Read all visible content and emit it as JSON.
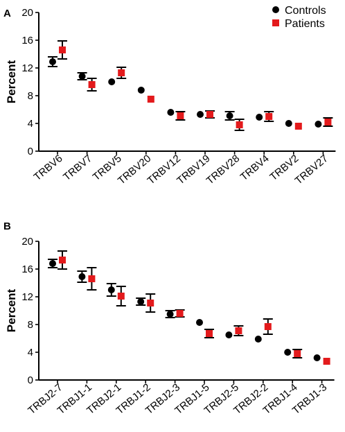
{
  "legend": {
    "items": [
      {
        "label": "Controls",
        "color": "#000000",
        "marker": "circle"
      },
      {
        "label": "Patients",
        "color": "#e31a1c",
        "marker": "square"
      }
    ]
  },
  "chart_data": [
    {
      "panel": "A",
      "type": "scatter",
      "ylabel": "Percent",
      "ylim": [
        0,
        20
      ],
      "yticks": [
        "0",
        "4",
        "8",
        "12",
        "16",
        "20"
      ],
      "categories": [
        "TRBV6",
        "TRBV7",
        "TRBV5",
        "TRBV20",
        "TRBV12",
        "TRBV19",
        "TRBV28",
        "TRBV4",
        "TRBV2",
        "TRBV27"
      ],
      "series": [
        {
          "name": "Controls",
          "values": [
            12.9,
            10.8,
            10.0,
            8.8,
            5.6,
            5.3,
            5.1,
            4.9,
            4.0,
            3.9
          ],
          "err": [
            0.7,
            0.5,
            0.0,
            0.0,
            0.0,
            0.0,
            0.6,
            0.0,
            0.0,
            0.0
          ]
        },
        {
          "name": "Patients",
          "values": [
            14.6,
            9.6,
            11.3,
            7.5,
            5.1,
            5.3,
            3.8,
            5.0,
            3.6,
            4.2
          ],
          "err": [
            1.3,
            0.9,
            0.8,
            0.0,
            0.6,
            0.5,
            0.8,
            0.7,
            0.0,
            0.6
          ]
        }
      ]
    },
    {
      "panel": "B",
      "type": "scatter",
      "ylabel": "Percent",
      "ylim": [
        0,
        20
      ],
      "yticks": [
        "0",
        "4",
        "8",
        "12",
        "16",
        "20"
      ],
      "categories": [
        "TRBJ2-7",
        "TRBJ1-1",
        "TRBJ2-1",
        "TRBJ1-2",
        "TRBJ2-3",
        "TRBJ1-5",
        "TRBJ2-5",
        "TRBJ2-2",
        "TRBJ1-4",
        "TRBJ1-3"
      ],
      "series": [
        {
          "name": "Controls",
          "values": [
            16.8,
            14.9,
            13.0,
            11.3,
            9.5,
            8.3,
            6.5,
            5.9,
            4.0,
            3.2
          ],
          "err": [
            0.6,
            0.8,
            0.9,
            0.5,
            0.5,
            0.0,
            0.0,
            0.0,
            0.0,
            0.0
          ]
        },
        {
          "name": "Patients",
          "values": [
            17.3,
            14.6,
            12.1,
            11.1,
            9.6,
            6.7,
            7.1,
            7.7,
            3.8,
            2.7
          ],
          "err": [
            1.3,
            1.6,
            1.4,
            1.3,
            0.5,
            0.6,
            0.7,
            1.1,
            0.6,
            0.0
          ]
        }
      ]
    }
  ]
}
